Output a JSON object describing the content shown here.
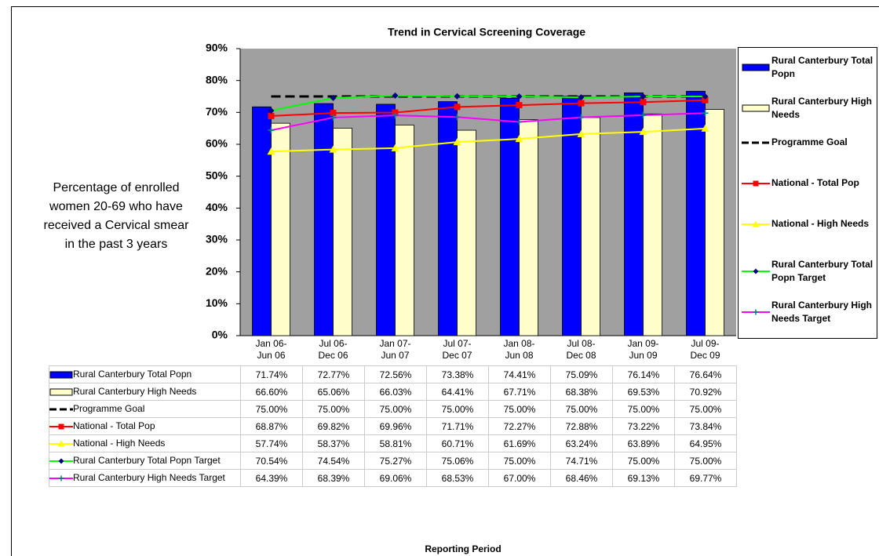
{
  "chart_data": {
    "type": "bar",
    "title": "Trend in Cervical Screening Coverage",
    "y_label": "Percentage of enrolled\nwomen 20-69 who have\nreceived a Cervical smear\nin the past 3 years",
    "x_label": "Reporting Period",
    "categories": [
      "Jan 06-\nJun 06",
      "Jul 06-\nDec 06",
      "Jan 07-\nJun 07",
      "Jul 07-\nDec 07",
      "Jan 08-\nJun 08",
      "Jul 08-\nDec 08",
      "Jan 09-\nJun 09",
      "Jul 09-\nDec 09"
    ],
    "ylim": [
      0,
      90
    ],
    "yticks": [
      {
        "value": 0,
        "label": "0%"
      },
      {
        "value": 10,
        "label": "10%"
      },
      {
        "value": 20,
        "label": "20%"
      },
      {
        "value": 30,
        "label": "30%"
      },
      {
        "value": 40,
        "label": "40%"
      },
      {
        "value": 50,
        "label": "50%"
      },
      {
        "value": 60,
        "label": "60%"
      },
      {
        "value": 70,
        "label": "70%"
      },
      {
        "value": 80,
        "label": "80%"
      },
      {
        "value": 90,
        "label": "90%"
      }
    ],
    "plot_background": "#a0a0a0",
    "legend": "right",
    "series": [
      {
        "name": "Rural Canterbury Total Popn",
        "kind": "bar",
        "color": "#0000ff",
        "values": [
          71.74,
          72.77,
          72.56,
          73.38,
          74.41,
          75.09,
          76.14,
          76.64
        ],
        "value_labels": [
          "71.74%",
          "72.77%",
          "72.56%",
          "73.38%",
          "74.41%",
          "75.09%",
          "76.14%",
          "76.64%"
        ]
      },
      {
        "name": "Rural Canterbury High Needs",
        "kind": "bar",
        "color": "#ffffcc",
        "values": [
          66.6,
          65.06,
          66.03,
          64.41,
          67.71,
          68.38,
          69.53,
          70.92
        ],
        "value_labels": [
          "66.60%",
          "65.06%",
          "66.03%",
          "64.41%",
          "67.71%",
          "68.38%",
          "69.53%",
          "70.92%"
        ]
      },
      {
        "name": "Programme Goal",
        "kind": "line",
        "color": "#000000",
        "dashed": true,
        "marker": "none",
        "values": [
          75,
          75,
          75,
          75,
          75,
          75,
          75,
          75
        ],
        "value_labels": [
          "75.00%",
          "75.00%",
          "75.00%",
          "75.00%",
          "75.00%",
          "75.00%",
          "75.00%",
          "75.00%"
        ]
      },
      {
        "name": "National - Total Pop",
        "kind": "line",
        "color": "#ff0000",
        "marker": "square",
        "marker_color": "#ff0000",
        "values": [
          68.87,
          69.82,
          69.96,
          71.71,
          72.27,
          72.88,
          73.22,
          73.84
        ],
        "value_labels": [
          "68.87%",
          "69.82%",
          "69.96%",
          "71.71%",
          "72.27%",
          "72.88%",
          "73.22%",
          "73.84%"
        ]
      },
      {
        "name": "National - High Needs",
        "kind": "line",
        "color": "#ffff00",
        "marker": "triangle",
        "marker_color": "#ffff00",
        "values": [
          57.74,
          58.37,
          58.81,
          60.71,
          61.69,
          63.24,
          63.89,
          64.95
        ],
        "value_labels": [
          "57.74%",
          "58.37%",
          "58.81%",
          "60.71%",
          "61.69%",
          "63.24%",
          "63.89%",
          "64.95%"
        ]
      },
      {
        "name": "Rural Canterbury Total Popn Target",
        "kind": "line",
        "color": "#00ff00",
        "marker": "diamond",
        "marker_color": "#000080",
        "values": [
          70.54,
          74.54,
          75.27,
          75.06,
          75.0,
          74.71,
          75.0,
          75.0
        ],
        "value_labels": [
          "70.54%",
          "74.54%",
          "75.27%",
          "75.06%",
          "75.00%",
          "74.71%",
          "75.00%",
          "75.00%"
        ]
      },
      {
        "name": "Rural Canterbury High Needs Target",
        "kind": "line",
        "color": "#ff00ff",
        "marker": "plus",
        "marker_color": "#008080",
        "values": [
          64.39,
          68.39,
          69.06,
          68.53,
          67.0,
          68.46,
          69.13,
          69.77
        ],
        "value_labels": [
          "64.39%",
          "68.39%",
          "69.06%",
          "68.53%",
          "67.00%",
          "68.46%",
          "69.13%",
          "69.77%"
        ]
      }
    ]
  }
}
